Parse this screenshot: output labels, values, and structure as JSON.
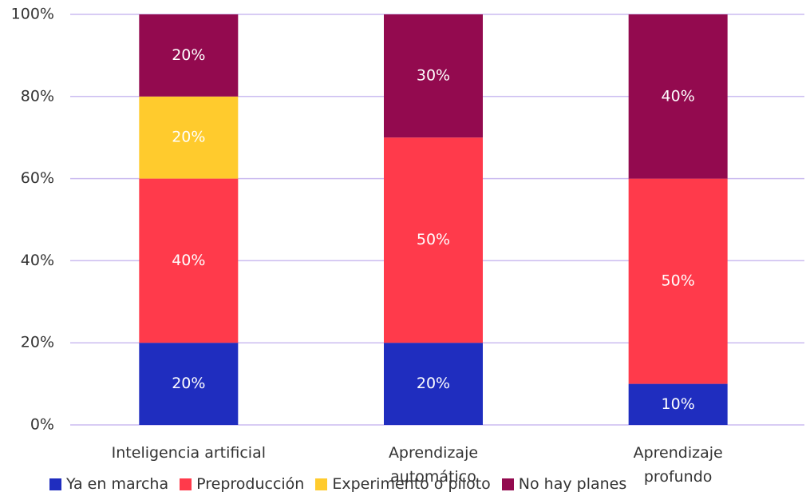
{
  "chart_data": {
    "type": "stacked_bar",
    "categories": [
      "Inteligencia artificial",
      "Aprendizaje automático",
      "Aprendizaje profundo"
    ],
    "series": [
      {
        "name": "Ya en marcha",
        "color": "#1f2dbf",
        "values": [
          20,
          20,
          10
        ],
        "value_labels": [
          "20%",
          "20%",
          "10%"
        ]
      },
      {
        "name": "Preproducción",
        "color": "#ff3a4b",
        "values": [
          40,
          50,
          50
        ],
        "value_labels": [
          "40%",
          "50%",
          "50%"
        ]
      },
      {
        "name": "Experimento o piloto",
        "color": "#ffcb2d",
        "values": [
          20,
          0,
          0
        ],
        "value_labels": [
          "20%",
          null,
          null
        ]
      },
      {
        "name": "No hay planes",
        "color": "#930a4f",
        "values": [
          20,
          30,
          40
        ],
        "value_labels": [
          "20%",
          "30%",
          "40%"
        ]
      }
    ],
    "ylim": [
      0,
      100
    ],
    "yticks": [
      {
        "value": 0,
        "label": "0%"
      },
      {
        "value": 20,
        "label": "20%"
      },
      {
        "value": 40,
        "label": "40%"
      },
      {
        "value": 60,
        "label": "60%"
      },
      {
        "value": 80,
        "label": "80%"
      },
      {
        "value": 100,
        "label": "100%"
      }
    ],
    "grid": true
  }
}
